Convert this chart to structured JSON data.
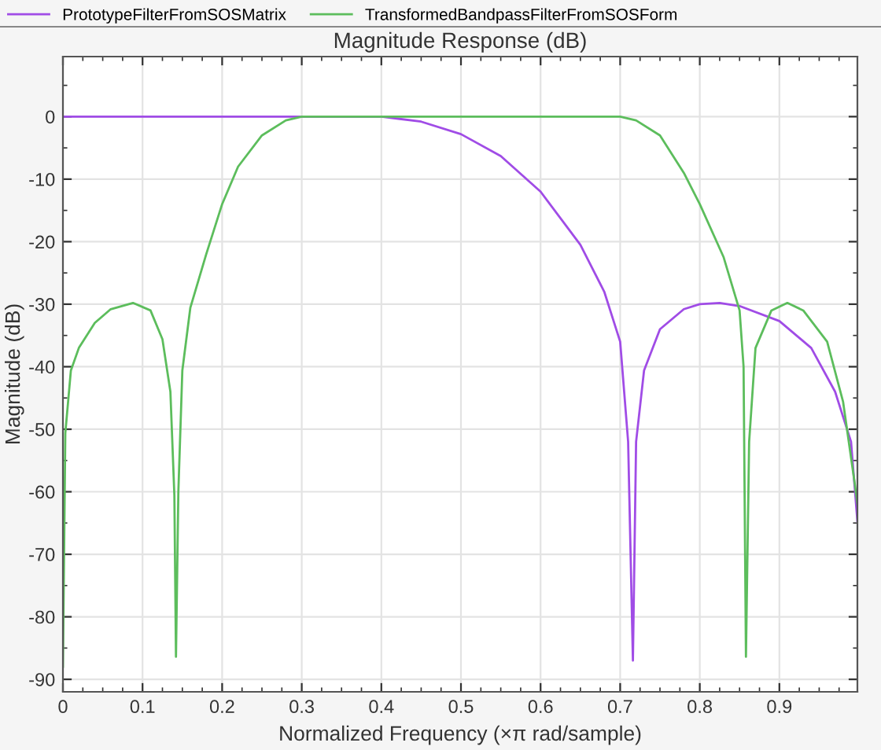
{
  "chart_data": {
    "type": "line",
    "title": "Magnitude Response (dB)",
    "xlabel": "Normalized Frequency (×π rad/sample)",
    "ylabel": "Magnitude (dB)",
    "xlim": [
      0,
      0.998
    ],
    "ylim": [
      -92,
      9.6
    ],
    "xticks": [
      0,
      0.1,
      0.2,
      0.3,
      0.4,
      0.5,
      0.6,
      0.7,
      0.8,
      0.9
    ],
    "yticks": [
      -90,
      -80,
      -70,
      -60,
      -50,
      -40,
      -30,
      -20,
      -10,
      0
    ],
    "grid": true,
    "legend": "top",
    "marker": "none",
    "line_style": "solid",
    "series": [
      {
        "name": "PrototypeFilterFromSOSMatrix",
        "color": "#a04ce6",
        "x": [
          0,
          0.1,
          0.2,
          0.3,
          0.4,
          0.45,
          0.5,
          0.55,
          0.6,
          0.65,
          0.68,
          0.7,
          0.71,
          0.716,
          0.72,
          0.73,
          0.75,
          0.78,
          0.8,
          0.825,
          0.85,
          0.9,
          0.94,
          0.97,
          0.99,
          0.998
        ],
        "values": [
          0,
          0,
          0,
          0,
          0,
          -0.8,
          -2.8,
          -6.3,
          -12,
          -20.5,
          -28,
          -36,
          -52,
          -87,
          -52,
          -40.6,
          -34,
          -30.8,
          -30,
          -29.8,
          -30.3,
          -32.7,
          -37,
          -44,
          -52,
          -64.7
        ]
      },
      {
        "name": "TransformedBandpassFilterFromSOSForm",
        "color": "#5cbd5c",
        "x": [
          0,
          0.003,
          0.01,
          0.02,
          0.04,
          0.06,
          0.088,
          0.11,
          0.125,
          0.135,
          0.14,
          0.142,
          0.145,
          0.15,
          0.16,
          0.18,
          0.2,
          0.22,
          0.25,
          0.28,
          0.3,
          0.4,
          0.5,
          0.6,
          0.7,
          0.72,
          0.75,
          0.78,
          0.8,
          0.83,
          0.85,
          0.855,
          0.858,
          0.862,
          0.87,
          0.89,
          0.91,
          0.93,
          0.96,
          0.98,
          0.995,
          0.998
        ],
        "values": [
          -88,
          -50.6,
          -40.6,
          -37,
          -33,
          -30.8,
          -29.8,
          -31,
          -35.6,
          -44,
          -60.6,
          -86.4,
          -60,
          -40.6,
          -30.6,
          -22,
          -14,
          -8,
          -3,
          -0.6,
          0,
          0,
          0,
          0,
          0,
          -0.6,
          -3,
          -9,
          -14,
          -22.5,
          -31,
          -40,
          -86.4,
          -52,
          -37,
          -31,
          -29.8,
          -31,
          -36,
          -45.6,
          -59,
          -62
        ]
      }
    ]
  }
}
